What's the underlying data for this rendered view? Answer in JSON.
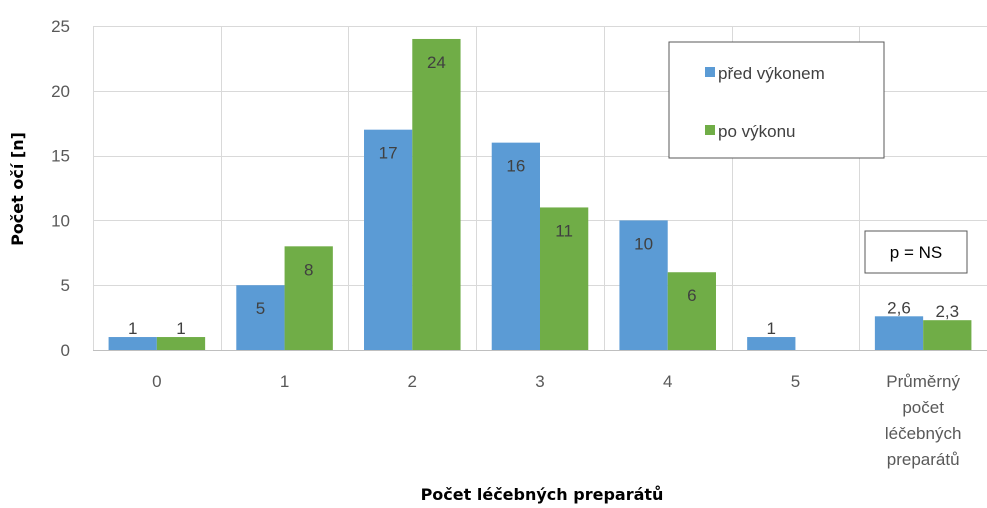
{
  "chart_data": {
    "type": "bar",
    "categories": [
      [
        "0"
      ],
      [
        "1"
      ],
      [
        "2"
      ],
      [
        "3"
      ],
      [
        "4"
      ],
      [
        "5"
      ],
      [
        "Průměrný",
        "počet",
        "léčebných",
        "preparátů"
      ]
    ],
    "series": [
      {
        "name": "před výkonem",
        "color": "#5b9bd5",
        "values": [
          1,
          5,
          17,
          16,
          10,
          1,
          2.6
        ],
        "labels": [
          "1",
          "5",
          "17",
          "16",
          "10",
          "1",
          "2,6"
        ]
      },
      {
        "name": "po výkonu",
        "color": "#70ad47",
        "values": [
          1,
          8,
          24,
          11,
          6,
          0,
          2.3
        ],
        "labels": [
          "1",
          "8",
          "24",
          "11",
          "6",
          "",
          "2,3"
        ]
      }
    ],
    "xlabel": "Počet léčebných preparátů",
    "ylabel": "Počet očí [n]",
    "ylim": [
      0,
      25
    ],
    "yticks": [
      0,
      5,
      10,
      15,
      20,
      25
    ],
    "grid": true,
    "legend_position": "top-right",
    "annotation": "p = NS"
  }
}
